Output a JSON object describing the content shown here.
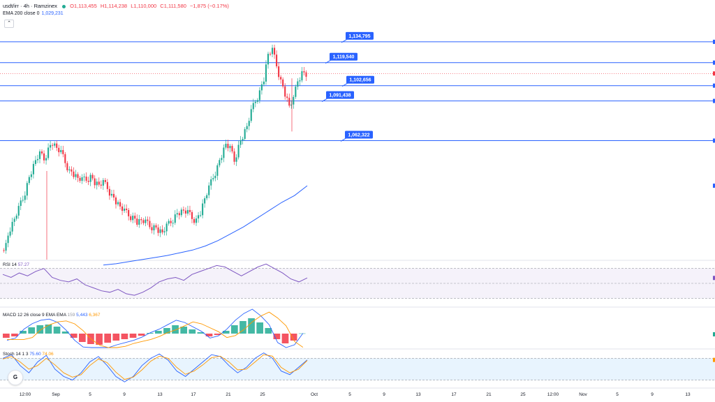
{
  "header": {
    "symbol": "usdt/irr · 4h · Ramzinex",
    "open": "O1,113,455",
    "high": "H1,114,238",
    "low": "L1,110,000",
    "close": "C1,111,580",
    "change": "−1,875 (−0.17%)"
  },
  "ema": {
    "label": "EMA 200 close 0",
    "value": "1,029,231"
  },
  "panels": {
    "rsi": {
      "label": "RSI 14",
      "value": "57.27"
    },
    "macd": {
      "label": "MACD 12 26 close 9 EMA EMA",
      "v1": "159",
      "v2": "5,443",
      "v3": "6,367"
    },
    "stoch": {
      "label": "Stoch 14 1 3",
      "k": "75.60",
      "d": "74.06"
    }
  },
  "colors": {
    "up": "#22ab94",
    "down": "#f23645",
    "level": "#2962ff",
    "ema": "#2962ff",
    "rsi": "#7e57c2"
  },
  "chart_data": {
    "type": "line",
    "ylim": [
      975000,
      1145000
    ],
    "x_tick_labels": [
      "12:00",
      "Sep",
      "5",
      "9",
      "13",
      "17",
      "21",
      "25",
      "Oct",
      "5",
      "9",
      "13",
      "17",
      "21",
      "25",
      "12:00",
      "Nov",
      "5",
      "9",
      "13"
    ],
    "levels": [
      1134795,
      1119540,
      1102656,
      1091438,
      1062322
    ],
    "level_labels": [
      "1,134,795",
      "1,119,540",
      "1,102,656",
      "1,091,438",
      "1,062,322"
    ],
    "price_close": [
      986000,
      998000,
      1005000,
      1012000,
      1020000,
      1030000,
      1040000,
      1048000,
      1052000,
      1049000,
      1056000,
      1061000,
      1057000,
      1053000,
      1047000,
      1040000,
      1038000,
      1035000,
      1033000,
      1034000,
      1036000,
      1032000,
      1030000,
      1031000,
      1028000,
      1022000,
      1018000,
      1014000,
      1010000,
      1008000,
      1006000,
      1003000,
      1004000,
      1002000,
      1000000,
      999000,
      997000,
      995000,
      999000,
      1003000,
      1007000,
      1010000,
      1011000,
      1009000,
      1006000,
      1004000,
      1010000,
      1020000,
      1027000,
      1036000,
      1043000,
      1052000,
      1060000,
      1056000,
      1048000,
      1058000,
      1066000,
      1073000,
      1083000,
      1092000,
      1098000,
      1108000,
      1126000,
      1128000,
      1118000,
      1106000,
      1097000,
      1088000,
      1092000,
      1107000,
      1112000,
      1111580
    ],
    "ema200": [
      971000,
      972000,
      973500,
      975000,
      976500,
      978000,
      980000,
      982000,
      985000,
      989000,
      994000,
      999000,
      1005000,
      1011000,
      1017000,
      1022000,
      1029231
    ],
    "rsi": [
      62,
      58,
      64,
      60,
      66,
      70,
      58,
      54,
      52,
      56,
      48,
      44,
      40,
      38,
      42,
      36,
      34,
      38,
      44,
      52,
      56,
      58,
      54,
      62,
      66,
      70,
      74,
      72,
      66,
      60,
      66,
      72,
      76,
      70,
      64,
      56,
      52,
      57.27
    ],
    "macd_hist": [
      -3000,
      -2000,
      2000,
      4500,
      6000,
      6500,
      5000,
      1500,
      -3000,
      -6000,
      -7500,
      -8000,
      -6500,
      -5000,
      -4000,
      -3000,
      -1500,
      500,
      2000,
      4000,
      6000,
      5000,
      3000,
      1000,
      -2000,
      -1000,
      2000,
      6000,
      9000,
      11000,
      8000,
      4000,
      -4000,
      -7000,
      -5000,
      159
    ],
    "stoch_k": [
      80,
      90,
      60,
      40,
      70,
      88,
      50,
      30,
      20,
      40,
      70,
      85,
      60,
      30,
      15,
      30,
      60,
      80,
      92,
      75,
      45,
      30,
      50,
      70,
      90,
      85,
      60,
      40,
      55,
      80,
      95,
      80,
      45,
      35,
      55,
      75.6
    ],
    "stoch_d": [
      78,
      85,
      70,
      50,
      60,
      80,
      62,
      40,
      28,
      35,
      60,
      78,
      68,
      42,
      22,
      28,
      48,
      72,
      86,
      80,
      55,
      36,
      45,
      62,
      82,
      86,
      70,
      48,
      50,
      70,
      90,
      86,
      55,
      40,
      50,
      74.06
    ]
  },
  "right_scale_markers": [
    "#2962ff",
    "#2962ff",
    "#f23645",
    "#2962ff",
    "#2962ff",
    "#2962ff"
  ],
  "logo": {
    "glyph": "tv-logo-icon"
  }
}
